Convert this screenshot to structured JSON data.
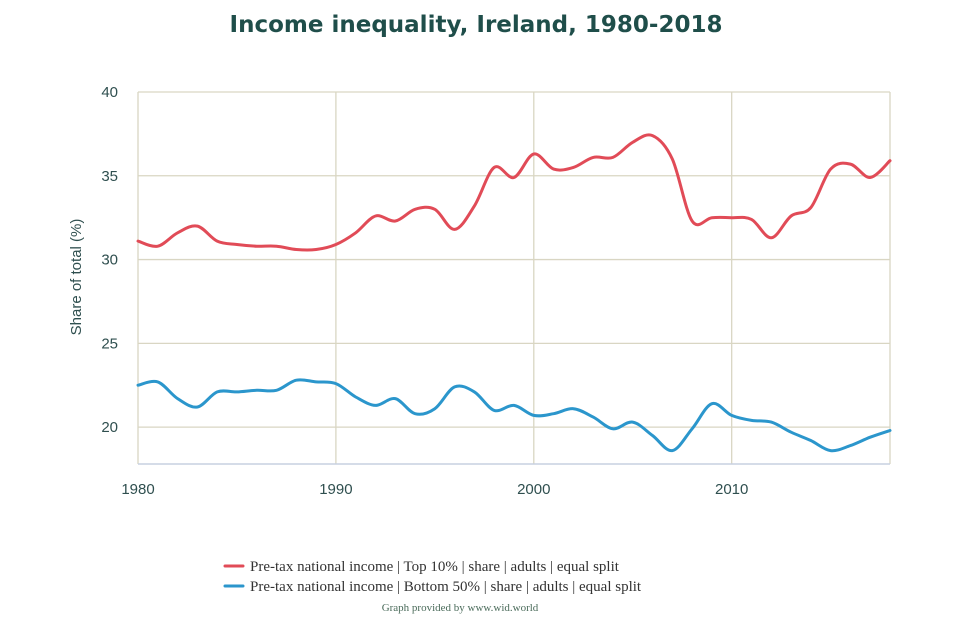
{
  "chart_data": {
    "type": "line",
    "title": "Income inequality, Ireland, 1980-2018",
    "xlabel": "",
    "ylabel": "Share of total (%)",
    "xlim": [
      1980,
      2018
    ],
    "ylim": [
      17.8,
      40
    ],
    "xticks": [
      1980,
      1990,
      2000,
      2010
    ],
    "yticks": [
      20,
      25,
      30,
      35,
      40
    ],
    "grid": true,
    "series": [
      {
        "name": "Pre-tax national income | Top 10% | share | adults | equal split",
        "color": "#e14b57",
        "x": [
          1980,
          1981,
          1982,
          1983,
          1984,
          1985,
          1986,
          1987,
          1988,
          1989,
          1990,
          1991,
          1992,
          1993,
          1994,
          1995,
          1996,
          1997,
          1998,
          1999,
          2000,
          2001,
          2002,
          2003,
          2004,
          2005,
          2006,
          2007,
          2008,
          2009,
          2010,
          2011,
          2012,
          2013,
          2014,
          2015,
          2016,
          2017,
          2018
        ],
        "values": [
          31.1,
          30.8,
          31.6,
          32.0,
          31.1,
          30.9,
          30.8,
          30.8,
          30.6,
          30.6,
          30.9,
          31.6,
          32.6,
          32.3,
          33.0,
          33.0,
          31.8,
          33.2,
          35.5,
          34.9,
          36.3,
          35.4,
          35.5,
          36.1,
          36.1,
          37.0,
          37.4,
          36.0,
          32.3,
          32.5,
          32.5,
          32.4,
          31.3,
          32.6,
          33.1,
          35.4,
          35.7,
          34.9,
          35.9
        ]
      },
      {
        "name": "Pre-tax national income | Bottom 50% | share | adults | equal split",
        "color": "#2b96cc",
        "x": [
          1980,
          1981,
          1982,
          1983,
          1984,
          1985,
          1986,
          1987,
          1988,
          1989,
          1990,
          1991,
          1992,
          1993,
          1994,
          1995,
          1996,
          1997,
          1998,
          1999,
          2000,
          2001,
          2002,
          2003,
          2004,
          2005,
          2006,
          2007,
          2008,
          2009,
          2010,
          2011,
          2012,
          2013,
          2014,
          2015,
          2016,
          2017,
          2018
        ],
        "values": [
          22.5,
          22.7,
          21.7,
          21.2,
          22.1,
          22.1,
          22.2,
          22.2,
          22.8,
          22.7,
          22.6,
          21.8,
          21.3,
          21.7,
          20.8,
          21.1,
          22.4,
          22.1,
          21.0,
          21.3,
          20.7,
          20.8,
          21.1,
          20.6,
          19.9,
          20.3,
          19.5,
          18.6,
          19.9,
          21.4,
          20.7,
          20.4,
          20.3,
          19.7,
          19.2,
          18.6,
          18.9,
          19.4,
          19.8
        ]
      }
    ]
  },
  "credit": "Graph provided by www.wid.world"
}
